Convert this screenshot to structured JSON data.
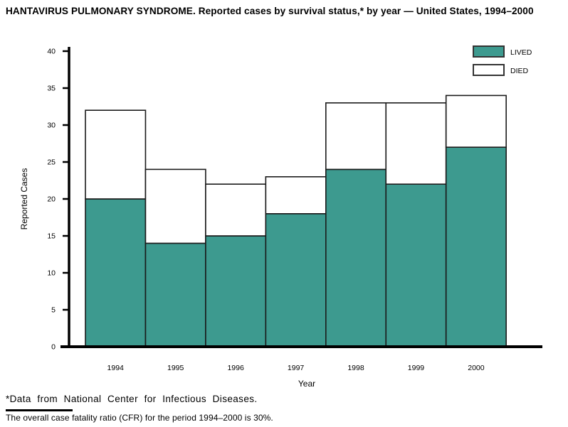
{
  "title": "HANTAVIRUS PULMONARY SYNDROME. Reported cases by survival status,* by year — United States, 1994–2000",
  "chart_data": {
    "type": "bar",
    "stacked": true,
    "title": "HANTAVIRUS PULMONARY SYNDROME. Reported cases by survival status,* by year — United States, 1994–2000",
    "categories": [
      "1994",
      "1995",
      "1996",
      "1997",
      "1998",
      "1999",
      "2000"
    ],
    "series": [
      {
        "name": "LIVED",
        "values": [
          20,
          14,
          15,
          18,
          24,
          22,
          27
        ],
        "color": "#3d9a8f"
      },
      {
        "name": "DIED",
        "values": [
          12,
          10,
          7,
          5,
          9,
          11,
          7
        ],
        "color": "#ffffff"
      }
    ],
    "totals": [
      32,
      24,
      22,
      23,
      33,
      33,
      34
    ],
    "xlabel": "Year",
    "ylabel": "Reported Cases",
    "ylim": [
      0,
      40
    ],
    "yticks": [
      0,
      5,
      10,
      15,
      20,
      25,
      30,
      35,
      40
    ],
    "grid": false,
    "legend_position": "top-right",
    "bar_border_color": "#1a1a1a",
    "legend_border_color": "#333333",
    "axis_color": "#000000"
  },
  "footnotes": {
    "data_source": "*Data from National Center for Infectious Diseases.",
    "cfr_note": "The overall case fatality ratio (CFR) for the period 1994–2000 is 30%."
  }
}
